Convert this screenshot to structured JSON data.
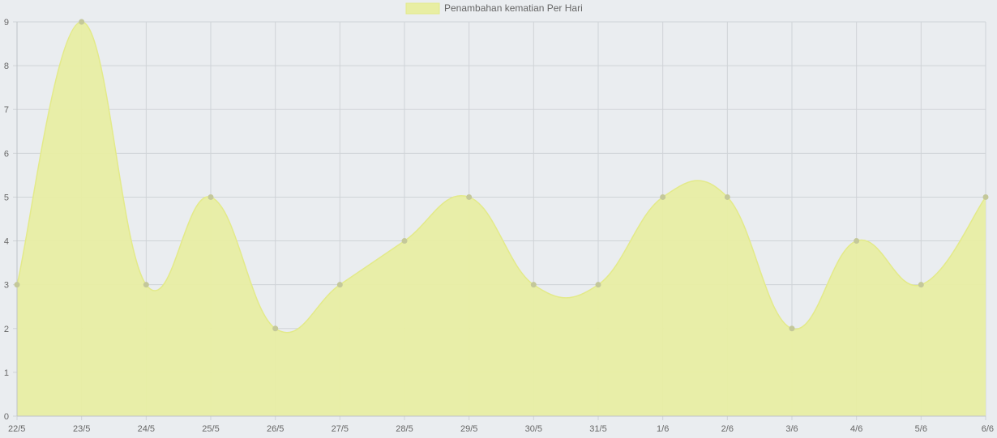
{
  "chart_data": {
    "type": "area",
    "categories": [
      "22/5",
      "23/5",
      "24/5",
      "25/5",
      "26/5",
      "27/5",
      "28/5",
      "29/5",
      "30/5",
      "31/5",
      "1/6",
      "2/6",
      "3/6",
      "4/6",
      "5/6",
      "6/6"
    ],
    "series": [
      {
        "name": "Penambahan kematian Per Hari",
        "values": [
          3,
          9,
          3,
          5,
          2,
          3,
          4,
          5,
          3,
          3,
          5,
          5,
          2,
          4,
          3,
          5
        ]
      }
    ],
    "title": "",
    "xlabel": "",
    "ylabel": "",
    "ylim": [
      0,
      9
    ],
    "yticks": [
      "0",
      "1",
      "2",
      "3",
      "4",
      "5",
      "6",
      "7",
      "8",
      "9"
    ],
    "grid": true,
    "legend_position": "top",
    "colors": {
      "fill": "#e8eea3",
      "line": "#e3ea8a",
      "point": "#c4c89a",
      "grid": "#cfd3d7",
      "background": "#eaedf0"
    }
  }
}
